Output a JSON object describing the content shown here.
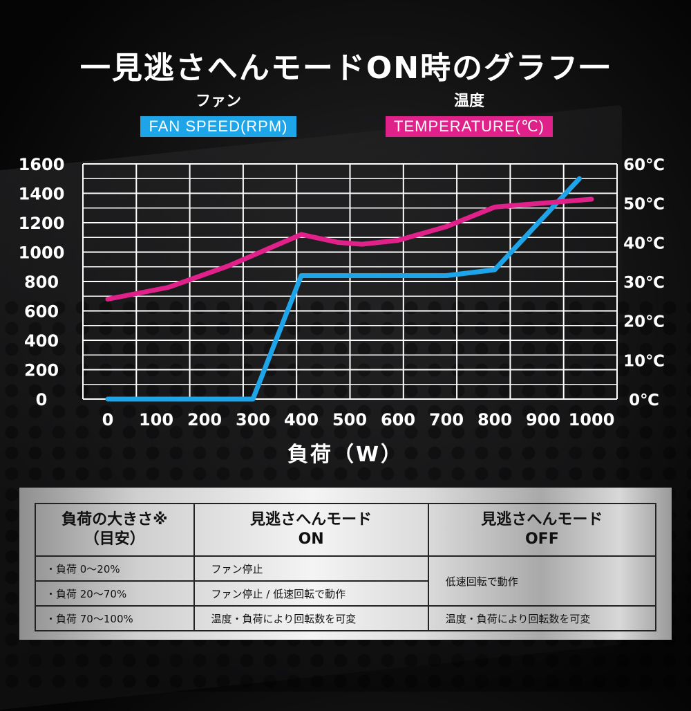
{
  "title": "一見逃さへんモードON時のグラフ一",
  "legend": {
    "fan_jp": "ファン",
    "fan_en": "FAN SPEED(RPM)",
    "temp_jp": "温度",
    "temp_en": "TEMPERATURE(℃)"
  },
  "colors": {
    "fan": "#1ea5e9",
    "temp": "#e0218a",
    "grid": "#ffffff"
  },
  "chart_data": {
    "type": "line",
    "xlabel": "負荷（W）",
    "x_ticks": [
      "0",
      "100",
      "200",
      "300",
      "400",
      "500",
      "600",
      "700",
      "800",
      "900",
      "1000"
    ],
    "y_left_ticks": [
      "0",
      "200",
      "400",
      "600",
      "800",
      "1000",
      "1200",
      "1400",
      "1600"
    ],
    "y_right_ticks": [
      "0℃",
      "10℃",
      "20℃",
      "30℃",
      "40℃",
      "50℃",
      "60℃"
    ],
    "xlim": [
      0,
      1000
    ],
    "ylim_left": [
      0,
      1600
    ],
    "ylim_right": [
      0,
      60
    ],
    "grid": true,
    "series": [
      {
        "name": "FAN SPEED(RPM)",
        "axis": "left",
        "points": [
          [
            0,
            0
          ],
          [
            300,
            0
          ],
          [
            400,
            840
          ],
          [
            700,
            840
          ],
          [
            800,
            880
          ],
          [
            975,
            1500
          ]
        ]
      },
      {
        "name": "TEMPERATURE(℃)",
        "axis": "right",
        "points": [
          [
            0,
            25.5
          ],
          [
            125,
            28.5
          ],
          [
            250,
            34
          ],
          [
            400,
            42
          ],
          [
            475,
            40
          ],
          [
            525,
            39.5
          ],
          [
            600,
            40.5
          ],
          [
            700,
            44
          ],
          [
            800,
            49
          ],
          [
            1000,
            51
          ]
        ]
      }
    ]
  },
  "table": {
    "headers": [
      "負荷の大きさ※\n（目安）",
      "見逃さへんモード\nON",
      "見逃さへんモード\nOFF"
    ],
    "rows": [
      {
        "load": "・負荷 0〜20%",
        "on": "ファン停止"
      },
      {
        "load": "・負荷 20〜70%",
        "on": "ファン停止 / 低速回転で動作"
      },
      {
        "load": "・負荷 70〜100%",
        "on": "温度・負荷により回転数を可変",
        "off": "温度・負荷により回転数を可変"
      }
    ],
    "off_merged": "低速回転で動作"
  }
}
